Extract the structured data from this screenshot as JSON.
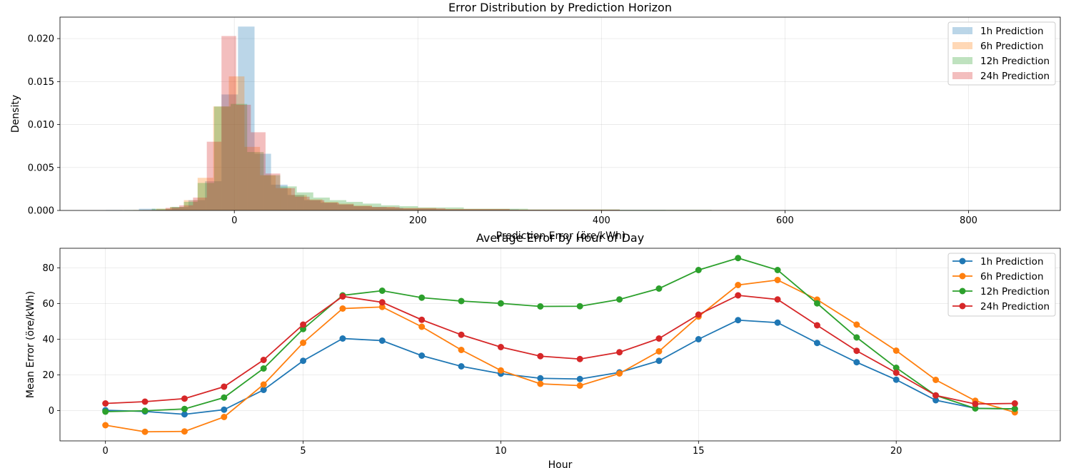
{
  "colors": {
    "1h": "#1f77b4",
    "6h": "#ff7f0e",
    "12h": "#2ca02c",
    "24h": "#d62728"
  },
  "chart_data": [
    {
      "type": "histogram",
      "title": "Error Distribution by Prediction Horizon",
      "xlabel": "Prediction Error (öre/kWh)",
      "ylabel": "Density",
      "xlim": [
        -190,
        900
      ],
      "ylim": [
        0,
        0.0225
      ],
      "xticks": [
        0,
        200,
        400,
        600,
        800
      ],
      "yticks": [
        0.0,
        0.005,
        0.01,
        0.015,
        0.02
      ],
      "ytick_labels": [
        "0.000",
        "0.005",
        "0.010",
        "0.015",
        "0.020"
      ],
      "grid": true,
      "legend": "top-right",
      "bar_alpha": 0.3,
      "series": [
        {
          "name": "1h Prediction",
          "color": "#1f77b4",
          "bins": [
            {
              "x0": -140,
              "x1": -122,
              "y": 5e-05
            },
            {
              "x0": -104,
              "x1": -86,
              "y": 0.0002
            },
            {
              "x0": -86,
              "x1": -68,
              "y": 0.0001
            },
            {
              "x0": -68,
              "x1": -50,
              "y": 0.0004
            },
            {
              "x0": -50,
              "x1": -32,
              "y": 0.0012
            },
            {
              "x0": -32,
              "x1": -14,
              "y": 0.0034
            },
            {
              "x0": -14,
              "x1": 4,
              "y": 0.0135
            },
            {
              "x0": 4,
              "x1": 22,
              "y": 0.0214
            },
            {
              "x0": 22,
              "x1": 40,
              "y": 0.0066
            },
            {
              "x0": 40,
              "x1": 58,
              "y": 0.003
            },
            {
              "x0": 58,
              "x1": 76,
              "y": 0.0018
            },
            {
              "x0": 76,
              "x1": 94,
              "y": 0.0012
            },
            {
              "x0": 94,
              "x1": 112,
              "y": 0.0009
            },
            {
              "x0": 112,
              "x1": 130,
              "y": 0.0007
            },
            {
              "x0": 130,
              "x1": 148,
              "y": 0.0005
            },
            {
              "x0": 148,
              "x1": 166,
              "y": 0.0004
            },
            {
              "x0": 166,
              "x1": 184,
              "y": 0.0003
            },
            {
              "x0": 184,
              "x1": 220,
              "y": 0.0002
            },
            {
              "x0": 220,
              "x1": 310,
              "y": 0.00012
            },
            {
              "x0": 310,
              "x1": 470,
              "y": 6e-05
            },
            {
              "x0": 470,
              "x1": 650,
              "y": 3e-05
            }
          ]
        },
        {
          "name": "6h Prediction",
          "color": "#ff7f0e",
          "bins": [
            {
              "x0": -110,
              "x1": -85,
              "y": 5e-05
            },
            {
              "x0": -85,
              "x1": -70,
              "y": 0.0002
            },
            {
              "x0": -70,
              "x1": -55,
              "y": 0.0004
            },
            {
              "x0": -55,
              "x1": -40,
              "y": 0.0012
            },
            {
              "x0": -40,
              "x1": -23,
              "y": 0.0038
            },
            {
              "x0": -23,
              "x1": -6,
              "y": 0.0121
            },
            {
              "x0": -6,
              "x1": 11,
              "y": 0.0156
            },
            {
              "x0": 11,
              "x1": 28,
              "y": 0.0074
            },
            {
              "x0": 28,
              "x1": 45,
              "y": 0.0041
            },
            {
              "x0": 45,
              "x1": 62,
              "y": 0.0026
            },
            {
              "x0": 62,
              "x1": 79,
              "y": 0.0018
            },
            {
              "x0": 79,
              "x1": 96,
              "y": 0.0013
            },
            {
              "x0": 96,
              "x1": 113,
              "y": 0.001
            },
            {
              "x0": 113,
              "x1": 130,
              "y": 0.0008
            },
            {
              "x0": 130,
              "x1": 150,
              "y": 0.0006
            },
            {
              "x0": 150,
              "x1": 175,
              "y": 0.0004
            },
            {
              "x0": 175,
              "x1": 220,
              "y": 0.0003
            },
            {
              "x0": 220,
              "x1": 300,
              "y": 0.00018
            },
            {
              "x0": 300,
              "x1": 420,
              "y": 0.0001
            },
            {
              "x0": 420,
              "x1": 560,
              "y": 5e-05
            }
          ]
        },
        {
          "name": "12h Prediction",
          "color": "#2ca02c",
          "bins": [
            {
              "x0": -120,
              "x1": -90,
              "y": 5e-05
            },
            {
              "x0": -90,
              "x1": -70,
              "y": 0.0002
            },
            {
              "x0": -70,
              "x1": -55,
              "y": 0.0004
            },
            {
              "x0": -55,
              "x1": -40,
              "y": 0.001
            },
            {
              "x0": -40,
              "x1": -22,
              "y": 0.0032
            },
            {
              "x0": -22,
              "x1": -4,
              "y": 0.0121
            },
            {
              "x0": -4,
              "x1": 14,
              "y": 0.0124
            },
            {
              "x0": 14,
              "x1": 32,
              "y": 0.0068
            },
            {
              "x0": 32,
              "x1": 50,
              "y": 0.0041
            },
            {
              "x0": 50,
              "x1": 68,
              "y": 0.0028
            },
            {
              "x0": 68,
              "x1": 86,
              "y": 0.0021
            },
            {
              "x0": 86,
              "x1": 104,
              "y": 0.0015
            },
            {
              "x0": 104,
              "x1": 122,
              "y": 0.0012
            },
            {
              "x0": 122,
              "x1": 140,
              "y": 0.001
            },
            {
              "x0": 140,
              "x1": 160,
              "y": 0.0008
            },
            {
              "x0": 160,
              "x1": 180,
              "y": 0.0006
            },
            {
              "x0": 180,
              "x1": 200,
              "y": 0.0005
            },
            {
              "x0": 200,
              "x1": 250,
              "y": 0.00035
            },
            {
              "x0": 250,
              "x1": 320,
              "y": 0.0002
            },
            {
              "x0": 320,
              "x1": 420,
              "y": 0.00012
            },
            {
              "x0": 420,
              "x1": 520,
              "y": 8e-05
            },
            {
              "x0": 520,
              "x1": 650,
              "y": 4e-05
            }
          ]
        },
        {
          "name": "24h Prediction",
          "color": "#d62728",
          "bins": [
            {
              "x0": -100,
              "x1": -75,
              "y": 5e-05
            },
            {
              "x0": -75,
              "x1": -60,
              "y": 0.0003
            },
            {
              "x0": -60,
              "x1": -45,
              "y": 0.0006
            },
            {
              "x0": -45,
              "x1": -30,
              "y": 0.0015
            },
            {
              "x0": -30,
              "x1": -14,
              "y": 0.008
            },
            {
              "x0": -14,
              "x1": 2,
              "y": 0.0203
            },
            {
              "x0": 2,
              "x1": 18,
              "y": 0.0123
            },
            {
              "x0": 18,
              "x1": 34,
              "y": 0.0091
            },
            {
              "x0": 34,
              "x1": 50,
              "y": 0.0043
            },
            {
              "x0": 50,
              "x1": 66,
              "y": 0.0026
            },
            {
              "x0": 66,
              "x1": 82,
              "y": 0.0016
            },
            {
              "x0": 82,
              "x1": 98,
              "y": 0.0012
            },
            {
              "x0": 98,
              "x1": 114,
              "y": 0.0009
            },
            {
              "x0": 114,
              "x1": 130,
              "y": 0.0007
            },
            {
              "x0": 130,
              "x1": 150,
              "y": 0.0005
            },
            {
              "x0": 150,
              "x1": 180,
              "y": 0.0004
            },
            {
              "x0": 180,
              "x1": 230,
              "y": 0.00025
            },
            {
              "x0": 230,
              "x1": 300,
              "y": 0.00015
            },
            {
              "x0": 300,
              "x1": 420,
              "y": 8e-05
            },
            {
              "x0": 420,
              "x1": 600,
              "y": 4e-05
            }
          ]
        }
      ]
    },
    {
      "type": "line",
      "title": "Average Error by Hour of Day",
      "xlabel": "Hour",
      "ylabel": "Mean Error (öre/kWh)",
      "xlim": [
        -1.15,
        24.15
      ],
      "ylim": [
        -17,
        91
      ],
      "xticks": [
        0,
        5,
        10,
        15,
        20
      ],
      "yticks": [
        0,
        20,
        40,
        60,
        80
      ],
      "grid": true,
      "legend": "top-right",
      "x": [
        0,
        1,
        2,
        3,
        4,
        5,
        6,
        7,
        8,
        9,
        10,
        11,
        12,
        13,
        14,
        15,
        16,
        17,
        18,
        19,
        20,
        21,
        22,
        23
      ],
      "series": [
        {
          "name": "1h Prediction",
          "color": "#1f77b4",
          "values": [
            0.2,
            -0.5,
            -2.1,
            0.5,
            11.6,
            27.9,
            40.4,
            39.2,
            30.8,
            24.8,
            20.7,
            18.1,
            17.7,
            21.4,
            27.9,
            40.0,
            50.7,
            49.3,
            37.9,
            27.1,
            17.3,
            5.8,
            1.3,
            0.9
          ]
        },
        {
          "name": "6h Prediction",
          "color": "#ff7f0e",
          "values": [
            -8.2,
            -11.9,
            -11.7,
            -3.6,
            14.6,
            38.0,
            57.2,
            58.1,
            47.0,
            34.0,
            22.5,
            15.0,
            14.0,
            20.8,
            33.2,
            52.7,
            70.4,
            73.2,
            62.2,
            48.2,
            33.6,
            17.2,
            5.5,
            -1.0
          ]
        },
        {
          "name": "12h Prediction",
          "color": "#2ca02c",
          "values": [
            -0.6,
            -0.1,
            0.9,
            7.3,
            23.6,
            45.7,
            64.6,
            67.2,
            63.3,
            61.4,
            60.1,
            58.4,
            58.5,
            62.3,
            68.4,
            78.8,
            85.5,
            78.8,
            60.1,
            41.0,
            24.0,
            8.5,
            1.2,
            1.0
          ]
        },
        {
          "name": "24h Prediction",
          "color": "#d62728",
          "values": [
            4.0,
            5.0,
            6.7,
            13.4,
            28.4,
            48.2,
            64.0,
            60.7,
            50.9,
            42.5,
            35.6,
            30.5,
            28.9,
            32.7,
            40.4,
            53.8,
            64.6,
            62.3,
            47.8,
            33.5,
            21.2,
            8.5,
            3.7,
            4.0
          ]
        }
      ]
    }
  ]
}
